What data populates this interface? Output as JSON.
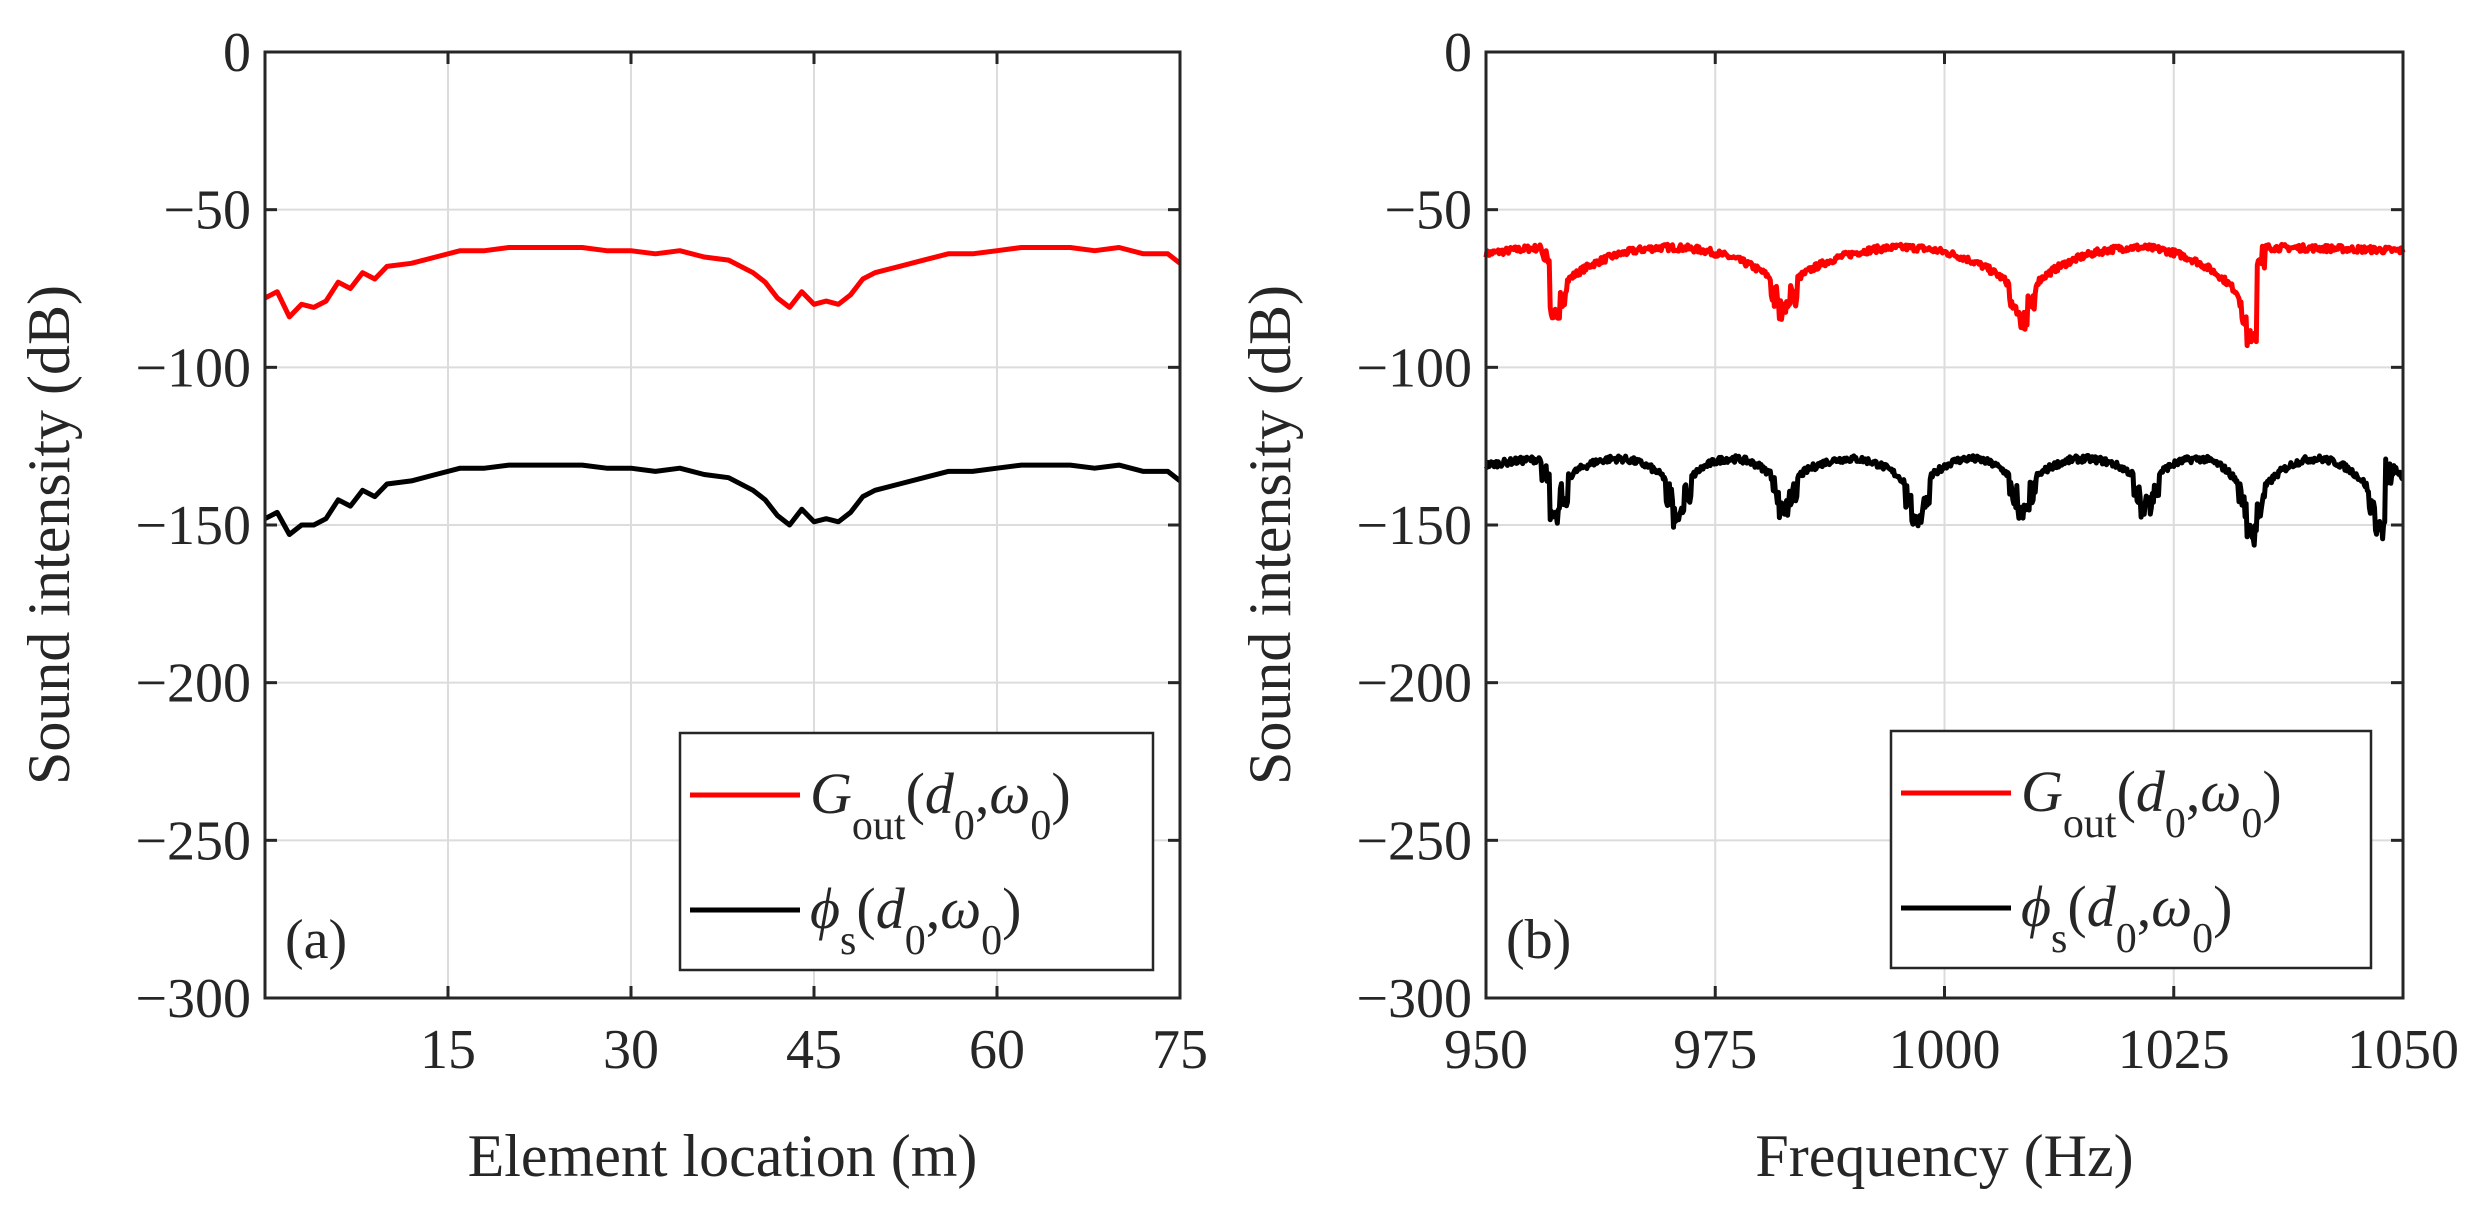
{
  "figure": {
    "colors": {
      "g_out": "#ff0000",
      "phi_s": "#000000",
      "axis": "#262626",
      "grid": "#dcdcdc"
    }
  },
  "chart_data": [
    {
      "type": "line",
      "panel_label": "(a)",
      "xlabel": "Element location (m)",
      "ylabel": "Sound intensity (dB)",
      "xlim": [
        0,
        75
      ],
      "ylim": [
        -300,
        0
      ],
      "xticks": [
        15,
        30,
        45,
        60,
        75
      ],
      "yticks": [
        0,
        -50,
        -100,
        -150,
        -200,
        -250,
        -300
      ],
      "ytick_labels": [
        "0",
        "−50",
        "−100",
        "−150",
        "−200",
        "−250",
        "−300"
      ],
      "grid": true,
      "legend_position": "bottom-right",
      "legend": [
        {
          "italic": "G",
          "sub": "out",
          "rest": "(d",
          "sub2": "0",
          "mid": ",ω",
          "sub3": "0",
          "end": ")"
        },
        {
          "italic": "ϕ",
          "sub": "s",
          "rest": "(d",
          "sub2": "0",
          "mid": ",ω",
          "sub3": "0",
          "end": ")"
        }
      ],
      "series": [
        {
          "name": "G_out(d_0,ω_0)",
          "color": "#ff0000",
          "x": [
            0,
            1,
            2,
            3,
            4,
            5,
            6,
            7,
            8,
            9,
            10,
            12,
            14,
            16,
            18,
            20,
            22,
            24,
            26,
            28,
            30,
            32,
            34,
            36,
            38,
            40,
            41,
            42,
            43,
            44,
            45,
            46,
            47,
            48,
            49,
            50,
            52,
            54,
            56,
            58,
            60,
            62,
            64,
            66,
            68,
            70,
            72,
            74,
            75
          ],
          "y": [
            -78,
            -76,
            -84,
            -80,
            -81,
            -79,
            -73,
            -75,
            -70,
            -72,
            -68,
            -67,
            -65,
            -63,
            -63,
            -62,
            -62,
            -62,
            -62,
            -63,
            -63,
            -64,
            -63,
            -65,
            -66,
            -70,
            -73,
            -78,
            -81,
            -76,
            -80,
            -79,
            -80,
            -77,
            -72,
            -70,
            -68,
            -66,
            -64,
            -64,
            -63,
            -62,
            -62,
            -62,
            -63,
            -62,
            -64,
            -64,
            -67
          ]
        },
        {
          "name": "ϕ_s(d_0,ω_0)",
          "color": "#000000",
          "x": [
            0,
            1,
            2,
            3,
            4,
            5,
            6,
            7,
            8,
            9,
            10,
            12,
            14,
            16,
            18,
            20,
            22,
            24,
            26,
            28,
            30,
            32,
            34,
            36,
            38,
            40,
            41,
            42,
            43,
            44,
            45,
            46,
            47,
            48,
            49,
            50,
            52,
            54,
            56,
            58,
            60,
            62,
            64,
            66,
            68,
            70,
            72,
            74,
            75
          ],
          "y": [
            -148,
            -146,
            -153,
            -150,
            -150,
            -148,
            -142,
            -144,
            -139,
            -141,
            -137,
            -136,
            -134,
            -132,
            -132,
            -131,
            -131,
            -131,
            -131,
            -132,
            -132,
            -133,
            -132,
            -134,
            -135,
            -139,
            -142,
            -147,
            -150,
            -145,
            -149,
            -148,
            -149,
            -146,
            -141,
            -139,
            -137,
            -135,
            -133,
            -133,
            -132,
            -131,
            -131,
            -131,
            -132,
            -131,
            -133,
            -133,
            -136
          ]
        }
      ]
    },
    {
      "type": "line",
      "panel_label": "(b)",
      "xlabel": "Frequency (Hz)",
      "ylabel": "Sound intensity (dB)",
      "xlim": [
        950,
        1050
      ],
      "ylim": [
        -300,
        0
      ],
      "xticks": [
        950,
        975,
        1000,
        1025,
        1050
      ],
      "yticks": [
        0,
        -50,
        -100,
        -150,
        -200,
        -250,
        -300
      ],
      "ytick_labels": [
        "0",
        "−50",
        "−100",
        "−150",
        "−200",
        "−250",
        "−300"
      ],
      "grid": true,
      "legend_position": "bottom-right",
      "legend": [
        {
          "italic": "G",
          "sub": "out",
          "rest": "(d",
          "sub2": "0",
          "mid": ",ω",
          "sub3": "0",
          "end": ")"
        },
        {
          "italic": "ϕ",
          "sub": "s",
          "rest": "(d",
          "sub2": "0",
          "mid": ",ω",
          "sub3": "0",
          "end": ")"
        }
      ],
      "series": [
        {
          "name": "G_out(d_0,ω_0)",
          "color": "#ff0000",
          "model": "arches",
          "dips_at": [
            957.5,
            982.5,
            1008.5,
            1033.5
          ],
          "dip_depths": [
            86,
            85,
            88,
            94
          ],
          "peak": -62,
          "start": -64,
          "end": -63
        },
        {
          "name": "ϕ_s(d_0,ω_0)",
          "color": "#000000",
          "model": "arches",
          "dips_at": [
            957.5,
            971,
            982.5,
            997,
            1008.5,
            1022,
            1033.5,
            1047.5
          ],
          "dip_depths": [
            149,
            150,
            148,
            151,
            149,
            147,
            156,
            155
          ],
          "peak": -129,
          "start": -131,
          "end": -135
        }
      ]
    }
  ]
}
